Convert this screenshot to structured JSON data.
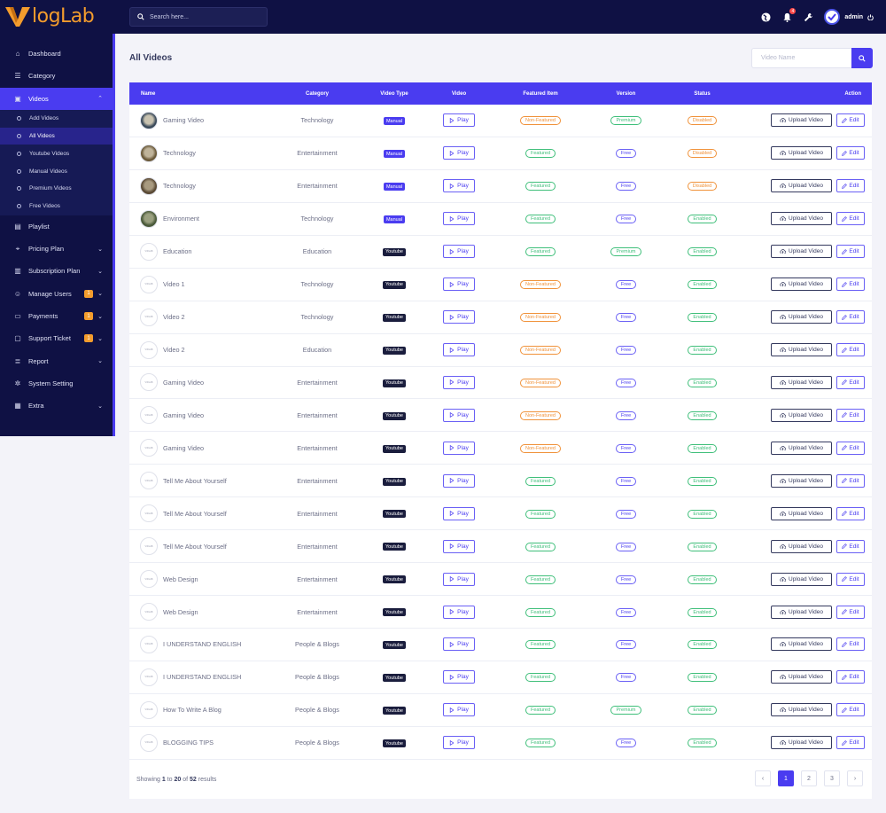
{
  "brand": {
    "logo_text": "logLab",
    "accent": "#f39c2d",
    "primary": "#4a3cf0",
    "dark": "#0f1144"
  },
  "header": {
    "search_placeholder": "Search here...",
    "notification_count": "4",
    "user": "admin",
    "icons": [
      "globe-icon",
      "bell-icon",
      "wrench-icon",
      "avatar",
      "power-icon"
    ]
  },
  "sidebar": {
    "items": [
      {
        "label": "Dashboard",
        "icon": "home-icon"
      },
      {
        "label": "Category",
        "icon": "list-icon"
      },
      {
        "label": "Videos",
        "icon": "video-icon",
        "active": true,
        "expanded": true
      },
      {
        "label": "Playlist",
        "icon": "file-icon"
      },
      {
        "label": "Pricing Plan",
        "icon": "tag-icon"
      },
      {
        "label": "Subscription Plan",
        "icon": "clipboard-icon"
      },
      {
        "label": "Manage Users",
        "icon": "users-icon",
        "badge": "1"
      },
      {
        "label": "Payments",
        "icon": "card-icon",
        "badge": "1"
      },
      {
        "label": "Support Ticket",
        "icon": "ticket-icon",
        "badge": "1"
      },
      {
        "label": "Report",
        "icon": "report-icon"
      },
      {
        "label": "System Setting",
        "icon": "gear-icon"
      },
      {
        "label": "Extra",
        "icon": "extra-icon"
      }
    ],
    "video_subitems": [
      {
        "label": "Add Videos"
      },
      {
        "label": "All Videos",
        "active": true
      },
      {
        "label": "Youtube Videos"
      },
      {
        "label": "Manual Videos"
      },
      {
        "label": "Premium Videos"
      },
      {
        "label": "Free Videos"
      }
    ]
  },
  "main": {
    "title": "All Videos",
    "video_search_placeholder": "Video Name",
    "columns": [
      "Name",
      "Category",
      "Video Type",
      "Video",
      "Featured Item",
      "Version",
      "Status",
      "Action"
    ],
    "play_label": "Play",
    "upload_label": "Upload Video",
    "edit_label": "Edit",
    "thumb_placeholder": "VIDLAB",
    "rows": [
      {
        "name": "Gaming Video",
        "category": "Technology",
        "type": "Manual",
        "featured": "Non-Featured",
        "version": "Premium",
        "status": "Disabled",
        "thumb": "image"
      },
      {
        "name": "Technology",
        "category": "Entertainment",
        "type": "Manual",
        "featured": "Featured",
        "version": "Free",
        "status": "Disabled",
        "thumb": "image"
      },
      {
        "name": "Technology",
        "category": "Entertainment",
        "type": "Manual",
        "featured": "Featured",
        "version": "Free",
        "status": "Disabled",
        "thumb": "image"
      },
      {
        "name": "Environment",
        "category": "Technology",
        "type": "Manual",
        "featured": "Featured",
        "version": "Free",
        "status": "Enabled",
        "thumb": "image"
      },
      {
        "name": "Education",
        "category": "Education",
        "type": "Youtube",
        "featured": "Featured",
        "version": "Premium",
        "status": "Enabled",
        "thumb": "logo"
      },
      {
        "name": "Video 1",
        "category": "Technology",
        "type": "Youtube",
        "featured": "Non-Featured",
        "version": "Free",
        "status": "Enabled",
        "thumb": "logo"
      },
      {
        "name": "Video 2",
        "category": "Technology",
        "type": "Youtube",
        "featured": "Non-Featured",
        "version": "Free",
        "status": "Enabled",
        "thumb": "logo"
      },
      {
        "name": "Video 2",
        "category": "Education",
        "type": "Youtube",
        "featured": "Non-Featured",
        "version": "Free",
        "status": "Enabled",
        "thumb": "logo"
      },
      {
        "name": "Gaming Video",
        "category": "Entertainment",
        "type": "Youtube",
        "featured": "Non-Featured",
        "version": "Free",
        "status": "Enabled",
        "thumb": "logo"
      },
      {
        "name": "Gaming Video",
        "category": "Entertainment",
        "type": "Youtube",
        "featured": "Non-Featured",
        "version": "Free",
        "status": "Enabled",
        "thumb": "logo"
      },
      {
        "name": "Gaming Video",
        "category": "Entertainment",
        "type": "Youtube",
        "featured": "Non-Featured",
        "version": "Free",
        "status": "Enabled",
        "thumb": "logo"
      },
      {
        "name": "Tell Me About Yourself",
        "category": "Entertainment",
        "type": "Youtube",
        "featured": "Featured",
        "version": "Free",
        "status": "Enabled",
        "thumb": "logo"
      },
      {
        "name": "Tell Me About Yourself",
        "category": "Entertainment",
        "type": "Youtube",
        "featured": "Featured",
        "version": "Free",
        "status": "Enabled",
        "thumb": "logo"
      },
      {
        "name": "Tell Me About Yourself",
        "category": "Entertainment",
        "type": "Youtube",
        "featured": "Featured",
        "version": "Free",
        "status": "Enabled",
        "thumb": "logo"
      },
      {
        "name": "Web Design",
        "category": "Entertainment",
        "type": "Youtube",
        "featured": "Featured",
        "version": "Free",
        "status": "Enabled",
        "thumb": "logo"
      },
      {
        "name": "Web Design",
        "category": "Entertainment",
        "type": "Youtube",
        "featured": "Featured",
        "version": "Free",
        "status": "Enabled",
        "thumb": "logo"
      },
      {
        "name": "I UNDERSTAND ENGLISH",
        "category": "People & Blogs",
        "type": "Youtube",
        "featured": "Featured",
        "version": "Free",
        "status": "Enabled",
        "thumb": "logo"
      },
      {
        "name": "I UNDERSTAND ENGLISH",
        "category": "People & Blogs",
        "type": "Youtube",
        "featured": "Featured",
        "version": "Free",
        "status": "Enabled",
        "thumb": "logo"
      },
      {
        "name": "How To Write A Blog",
        "category": "People & Blogs",
        "type": "Youtube",
        "featured": "Featured",
        "version": "Premium",
        "status": "Enabled",
        "thumb": "logo"
      },
      {
        "name": "BLOGGING TIPS",
        "category": "People & Blogs",
        "type": "Youtube",
        "featured": "Featured",
        "version": "Free",
        "status": "Enabled",
        "thumb": "logo"
      }
    ],
    "footer": {
      "showing_prefix": "Showing",
      "from": "1",
      "to_word": "to",
      "to": "20",
      "of_word": "of",
      "total": "52",
      "suffix": "results"
    },
    "pagination": {
      "prev": "‹",
      "pages": [
        "1",
        "2",
        "3"
      ],
      "current": "1",
      "next": "›"
    }
  }
}
